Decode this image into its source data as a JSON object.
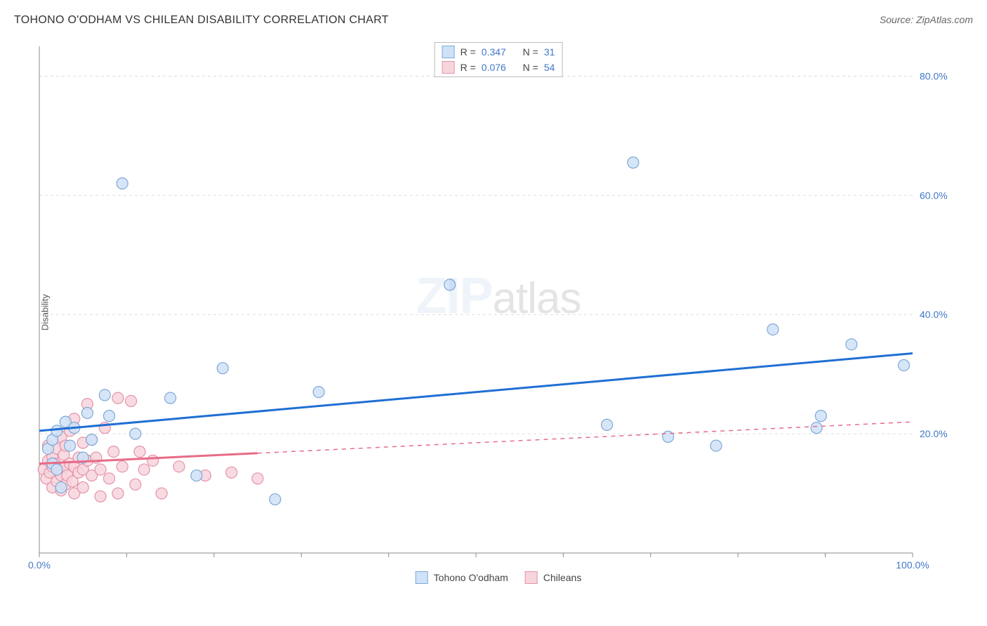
{
  "title": "TOHONO O'ODHAM VS CHILEAN DISABILITY CORRELATION CHART",
  "source": "Source: ZipAtlas.com",
  "y_axis_label": "Disability",
  "watermark_bold": "ZIP",
  "watermark_light": "atlas",
  "chart": {
    "type": "scatter",
    "xlim": [
      0,
      100
    ],
    "ylim": [
      0,
      85
    ],
    "x_ticks": [
      0,
      100
    ],
    "x_tick_labels": [
      "0.0%",
      "100.0%"
    ],
    "x_minor_ticks": [
      0,
      10,
      20,
      30,
      40,
      50,
      60,
      70,
      80,
      90,
      100
    ],
    "y_ticks": [
      20,
      40,
      60,
      80
    ],
    "y_tick_labels": [
      "20.0%",
      "40.0%",
      "60.0%",
      "80.0%"
    ],
    "background_color": "#ffffff",
    "grid_color": "#dddddd",
    "axis_color": "#888888",
    "marker_radius": 8,
    "marker_stroke_width": 1.2,
    "line_width": 3,
    "series": [
      {
        "name": "Tohono O'odham",
        "fill": "#cfe2f7",
        "stroke": "#7fa8d6",
        "line_color": "#1f6fd4",
        "trend": {
          "x1": 0,
          "y1": 20.5,
          "x2": 100,
          "y2": 33.5
        },
        "solid_until_x": 100,
        "r_value": "0.347",
        "n_value": "31",
        "points": [
          [
            1.0,
            17.5
          ],
          [
            1.5,
            15.0
          ],
          [
            1.5,
            19.0
          ],
          [
            2.0,
            14.0
          ],
          [
            2.0,
            20.5
          ],
          [
            2.5,
            11.0
          ],
          [
            3.0,
            22.0
          ],
          [
            3.5,
            18.0
          ],
          [
            4.0,
            21.0
          ],
          [
            5.0,
            16.0
          ],
          [
            5.5,
            23.5
          ],
          [
            6.0,
            19.0
          ],
          [
            7.5,
            26.5
          ],
          [
            8.0,
            23.0
          ],
          [
            9.5,
            62.0
          ],
          [
            11.0,
            20.0
          ],
          [
            15.0,
            26.0
          ],
          [
            18.0,
            13.0
          ],
          [
            21.0,
            31.0
          ],
          [
            27.0,
            9.0
          ],
          [
            32.0,
            27.0
          ],
          [
            47.0,
            45.0
          ],
          [
            65.0,
            21.5
          ],
          [
            68.0,
            65.5
          ],
          [
            72.0,
            19.5
          ],
          [
            77.5,
            18.0
          ],
          [
            84.0,
            37.5
          ],
          [
            89.0,
            21.0
          ],
          [
            89.5,
            23.0
          ],
          [
            93.0,
            35.0
          ],
          [
            99.0,
            31.5
          ]
        ]
      },
      {
        "name": "Chileans",
        "fill": "#f7d5dd",
        "stroke": "#e492a6",
        "line_color": "#e86b87",
        "trend": {
          "x1": 0,
          "y1": 15.0,
          "x2": 100,
          "y2": 22.0
        },
        "solid_until_x": 25,
        "r_value": "0.076",
        "n_value": "54",
        "points": [
          [
            0.5,
            14.0
          ],
          [
            0.8,
            12.5
          ],
          [
            1.0,
            15.5
          ],
          [
            1.0,
            18.0
          ],
          [
            1.2,
            13.5
          ],
          [
            1.5,
            11.0
          ],
          [
            1.5,
            16.0
          ],
          [
            1.5,
            14.5
          ],
          [
            1.8,
            15.0
          ],
          [
            2.0,
            17.5
          ],
          [
            2.0,
            12.0
          ],
          [
            2.2,
            14.0
          ],
          [
            2.5,
            13.0
          ],
          [
            2.5,
            19.5
          ],
          [
            2.5,
            10.5
          ],
          [
            2.8,
            16.5
          ],
          [
            3.0,
            14.5
          ],
          [
            3.0,
            18.0
          ],
          [
            3.0,
            11.5
          ],
          [
            3.2,
            13.0
          ],
          [
            3.5,
            15.0
          ],
          [
            3.5,
            20.5
          ],
          [
            3.8,
            12.0
          ],
          [
            4.0,
            14.5
          ],
          [
            4.0,
            22.5
          ],
          [
            4.0,
            10.0
          ],
          [
            4.5,
            16.0
          ],
          [
            4.5,
            13.5
          ],
          [
            5.0,
            18.5
          ],
          [
            5.0,
            14.0
          ],
          [
            5.0,
            11.0
          ],
          [
            5.5,
            15.5
          ],
          [
            5.5,
            25.0
          ],
          [
            6.0,
            13.0
          ],
          [
            6.0,
            19.0
          ],
          [
            6.5,
            16.0
          ],
          [
            7.0,
            9.5
          ],
          [
            7.0,
            14.0
          ],
          [
            7.5,
            21.0
          ],
          [
            8.0,
            12.5
          ],
          [
            8.5,
            17.0
          ],
          [
            9.0,
            26.0
          ],
          [
            9.0,
            10.0
          ],
          [
            9.5,
            14.5
          ],
          [
            10.5,
            25.5
          ],
          [
            11.0,
            11.5
          ],
          [
            11.5,
            17.0
          ],
          [
            12.0,
            14.0
          ],
          [
            13.0,
            15.5
          ],
          [
            14.0,
            10.0
          ],
          [
            16.0,
            14.5
          ],
          [
            19.0,
            13.0
          ],
          [
            22.0,
            13.5
          ],
          [
            25.0,
            12.5
          ]
        ]
      }
    ]
  },
  "legend_top": {
    "r_label": "R =",
    "n_label": "N ="
  },
  "legend_bottom": {
    "items": [
      "Tohono O'odham",
      "Chileans"
    ]
  }
}
